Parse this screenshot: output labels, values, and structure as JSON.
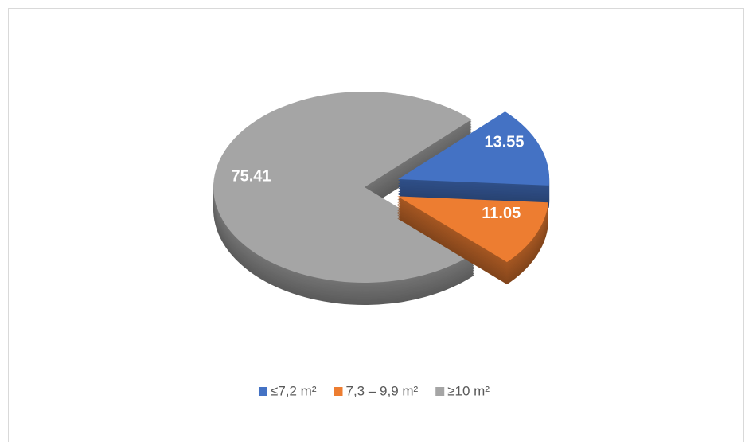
{
  "chart_data": {
    "type": "pie",
    "categories": [
      "≤7,2 m²",
      "7,3 – 9,9 m²",
      "≥10 m²"
    ],
    "values": [
      13.55,
      11.05,
      75.41
    ],
    "colors": [
      "#4472c4",
      "#ed7d31",
      "#a5a5a5"
    ],
    "legend": "bottom"
  }
}
